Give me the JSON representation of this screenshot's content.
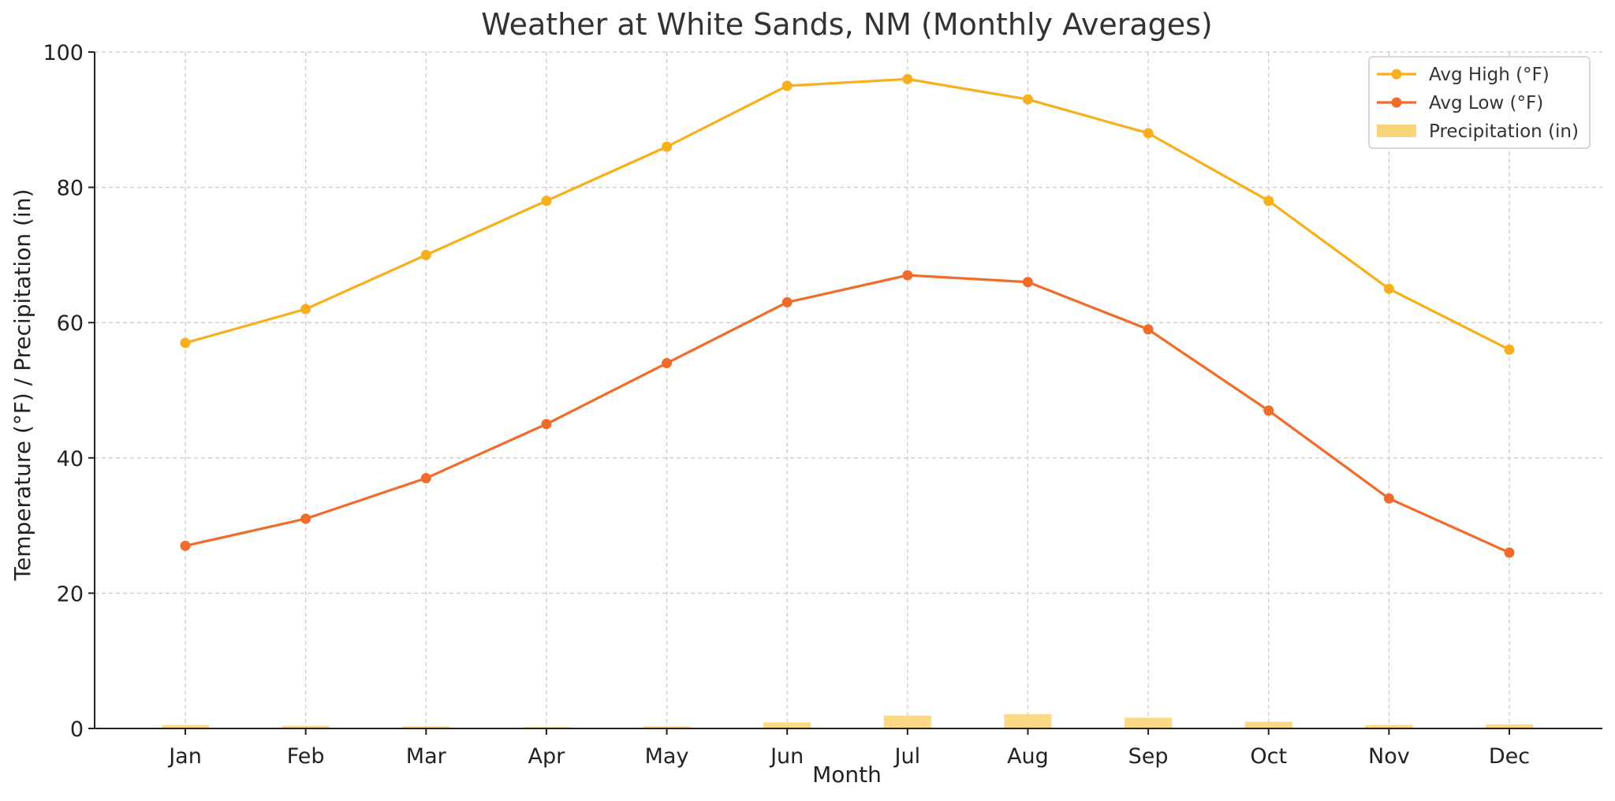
{
  "chart_data": {
    "type": "line",
    "title": "Weather at White Sands, NM (Monthly Averages)",
    "xlabel": "Month",
    "ylabel": "Temperature (°F) / Precipitation (in)",
    "categories": [
      "Jan",
      "Feb",
      "Mar",
      "Apr",
      "May",
      "Jun",
      "Jul",
      "Aug",
      "Sep",
      "Oct",
      "Nov",
      "Dec"
    ],
    "ylim": [
      0,
      100
    ],
    "yticks": [
      0,
      20,
      40,
      60,
      80,
      100
    ],
    "grid": true,
    "legend_position": "top-right",
    "series": [
      {
        "name": "Avg High (°F)",
        "kind": "line",
        "color": "#F7B01B",
        "values": [
          57,
          62,
          70,
          78,
          86,
          95,
          96,
          93,
          88,
          78,
          65,
          56
        ]
      },
      {
        "name": "Avg Low (°F)",
        "kind": "line",
        "color": "#EF6C2B",
        "values": [
          27,
          31,
          37,
          45,
          54,
          63,
          67,
          66,
          59,
          47,
          34,
          26
        ]
      },
      {
        "name": "Precipitation (in)",
        "kind": "bar",
        "color": "#FBD57A",
        "values": [
          0.5,
          0.4,
          0.3,
          0.2,
          0.3,
          0.9,
          1.9,
          2.1,
          1.6,
          1.0,
          0.5,
          0.6
        ]
      }
    ]
  }
}
